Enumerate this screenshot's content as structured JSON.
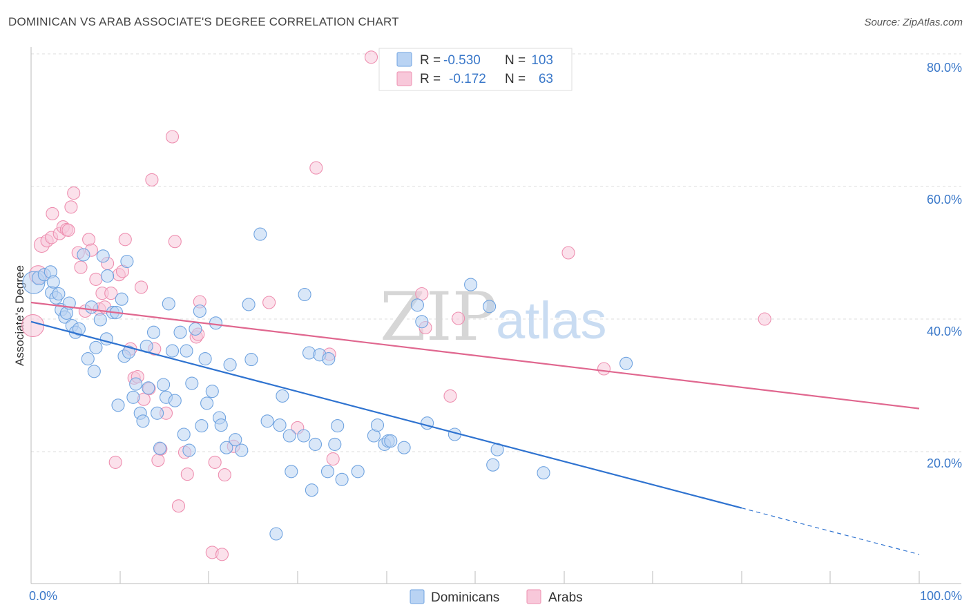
{
  "title": "DOMINICAN VS ARAB ASSOCIATE'S DEGREE CORRELATION CHART",
  "source": "Source: ZipAtlas.com",
  "watermark": {
    "part1": "ZIP",
    "part2": "atlas"
  },
  "colors": {
    "dominican": "#6fa3e0",
    "dominican_fill": "#b9d3f3",
    "dominican_line": "#2f73d0",
    "arab": "#ee8fb0",
    "arab_fill": "#f8c8da",
    "arab_line": "#e0678f",
    "grid": "#dddddd",
    "tick_text": "#3a78c9"
  },
  "legend": {
    "rows": [
      {
        "r_label": "R =",
        "r_value": "-0.530",
        "n_label": "N =",
        "n_value": "103"
      },
      {
        "r_label": "R =",
        "r_value": "-0.172",
        "n_label": "N =",
        "n_value": "63"
      }
    ]
  },
  "bottom_legend": {
    "dominicans": "Dominicans",
    "arabs": "Arabs"
  },
  "chart_data": {
    "type": "scatter",
    "title": "DOMINICAN VS ARAB ASSOCIATE'S DEGREE CORRELATION CHART",
    "xlabel": "",
    "ylabel": "Associate's Degree",
    "xlim": [
      0,
      100
    ],
    "ylim": [
      0,
      83
    ],
    "x_tick_labels": [
      "0.0%",
      "100.0%"
    ],
    "y_ticks": [
      20,
      40,
      60,
      80
    ],
    "y_tick_labels": [
      "20.0%",
      "40.0%",
      "60.0%",
      "80.0%"
    ],
    "series": [
      {
        "name": "Dominicans",
        "r": -0.53,
        "n": 103,
        "trend": {
          "x0": 0,
          "y0": 39.6,
          "x1": 80,
          "y1": 11.5,
          "dashed_to_x": 100,
          "dashed_to_y": 4.5
        },
        "points": [
          {
            "x": 0.3,
            "y": 45.5,
            "s": 16
          },
          {
            "x": 0.9,
            "y": 46.2,
            "s": 10
          },
          {
            "x": 1.5,
            "y": 46.7,
            "s": 9
          },
          {
            "x": 2.2,
            "y": 47.1,
            "s": 9
          },
          {
            "x": 2.3,
            "y": 44.0,
            "s": 9
          },
          {
            "x": 2.5,
            "y": 45.6,
            "s": 9
          },
          {
            "x": 2.8,
            "y": 43.2,
            "s": 9
          },
          {
            "x": 3.1,
            "y": 43.8,
            "s": 9
          },
          {
            "x": 3.4,
            "y": 41.4,
            "s": 9
          },
          {
            "x": 3.8,
            "y": 40.3,
            "s": 9
          },
          {
            "x": 4.0,
            "y": 40.9,
            "s": 9
          },
          {
            "x": 4.3,
            "y": 42.4,
            "s": 9
          },
          {
            "x": 4.6,
            "y": 39.0,
            "s": 9
          },
          {
            "x": 5.0,
            "y": 38.0,
            "s": 9
          },
          {
            "x": 5.4,
            "y": 38.5,
            "s": 9
          },
          {
            "x": 5.9,
            "y": 49.7,
            "s": 9
          },
          {
            "x": 6.4,
            "y": 34.0,
            "s": 9
          },
          {
            "x": 6.8,
            "y": 41.8,
            "s": 9
          },
          {
            "x": 7.1,
            "y": 32.1,
            "s": 9
          },
          {
            "x": 7.3,
            "y": 35.7,
            "s": 9
          },
          {
            "x": 7.8,
            "y": 39.9,
            "s": 9
          },
          {
            "x": 8.1,
            "y": 49.5,
            "s": 9
          },
          {
            "x": 8.5,
            "y": 37.0,
            "s": 9
          },
          {
            "x": 8.6,
            "y": 46.5,
            "s": 9
          },
          {
            "x": 9.2,
            "y": 41.0,
            "s": 9
          },
          {
            "x": 9.6,
            "y": 41.0,
            "s": 9
          },
          {
            "x": 9.8,
            "y": 27.0,
            "s": 9
          },
          {
            "x": 10.2,
            "y": 43.0,
            "s": 9
          },
          {
            "x": 10.5,
            "y": 34.4,
            "s": 9
          },
          {
            "x": 10.8,
            "y": 48.7,
            "s": 9
          },
          {
            "x": 11.0,
            "y": 35.0,
            "s": 9
          },
          {
            "x": 11.5,
            "y": 28.2,
            "s": 9
          },
          {
            "x": 11.8,
            "y": 30.2,
            "s": 9
          },
          {
            "x": 12.3,
            "y": 25.8,
            "s": 9
          },
          {
            "x": 12.6,
            "y": 24.6,
            "s": 9
          },
          {
            "x": 13.0,
            "y": 35.9,
            "s": 9
          },
          {
            "x": 13.2,
            "y": 29.6,
            "s": 9
          },
          {
            "x": 13.8,
            "y": 38.0,
            "s": 9
          },
          {
            "x": 14.2,
            "y": 25.8,
            "s": 9
          },
          {
            "x": 14.5,
            "y": 20.5,
            "s": 9
          },
          {
            "x": 14.9,
            "y": 30.1,
            "s": 9
          },
          {
            "x": 15.2,
            "y": 28.2,
            "s": 9
          },
          {
            "x": 15.5,
            "y": 42.3,
            "s": 9
          },
          {
            "x": 15.9,
            "y": 35.2,
            "s": 9
          },
          {
            "x": 16.2,
            "y": 27.7,
            "s": 9
          },
          {
            "x": 16.8,
            "y": 38.0,
            "s": 9
          },
          {
            "x": 17.2,
            "y": 22.6,
            "s": 9
          },
          {
            "x": 17.5,
            "y": 35.2,
            "s": 9
          },
          {
            "x": 17.8,
            "y": 20.2,
            "s": 9
          },
          {
            "x": 18.1,
            "y": 30.3,
            "s": 9
          },
          {
            "x": 18.5,
            "y": 38.5,
            "s": 9
          },
          {
            "x": 19.0,
            "y": 41.2,
            "s": 9
          },
          {
            "x": 19.2,
            "y": 23.9,
            "s": 9
          },
          {
            "x": 19.6,
            "y": 34.0,
            "s": 9
          },
          {
            "x": 19.8,
            "y": 27.3,
            "s": 9
          },
          {
            "x": 20.4,
            "y": 29.1,
            "s": 9
          },
          {
            "x": 20.8,
            "y": 39.4,
            "s": 9
          },
          {
            "x": 21.2,
            "y": 25.1,
            "s": 9
          },
          {
            "x": 21.4,
            "y": 24.0,
            "s": 9
          },
          {
            "x": 22.0,
            "y": 20.6,
            "s": 9
          },
          {
            "x": 22.4,
            "y": 33.1,
            "s": 9
          },
          {
            "x": 23.0,
            "y": 21.8,
            "s": 9
          },
          {
            "x": 23.7,
            "y": 20.2,
            "s": 9
          },
          {
            "x": 24.5,
            "y": 42.2,
            "s": 9
          },
          {
            "x": 24.8,
            "y": 33.9,
            "s": 9
          },
          {
            "x": 25.8,
            "y": 52.8,
            "s": 9
          },
          {
            "x": 26.6,
            "y": 24.6,
            "s": 9
          },
          {
            "x": 27.6,
            "y": 7.6,
            "s": 9
          },
          {
            "x": 28.0,
            "y": 24.0,
            "s": 9
          },
          {
            "x": 28.3,
            "y": 28.4,
            "s": 9
          },
          {
            "x": 29.1,
            "y": 22.4,
            "s": 9
          },
          {
            "x": 29.3,
            "y": 17.0,
            "s": 9
          },
          {
            "x": 30.8,
            "y": 43.7,
            "s": 9
          },
          {
            "x": 30.7,
            "y": 22.4,
            "s": 9
          },
          {
            "x": 31.3,
            "y": 34.9,
            "s": 9
          },
          {
            "x": 31.6,
            "y": 14.2,
            "s": 9
          },
          {
            "x": 32.0,
            "y": 21.1,
            "s": 9
          },
          {
            "x": 32.5,
            "y": 34.6,
            "s": 9
          },
          {
            "x": 33.5,
            "y": 34.0,
            "s": 9
          },
          {
            "x": 33.4,
            "y": 17.0,
            "s": 9
          },
          {
            "x": 34.2,
            "y": 21.1,
            "s": 9
          },
          {
            "x": 34.5,
            "y": 23.9,
            "s": 9
          },
          {
            "x": 35.0,
            "y": 15.8,
            "s": 9
          },
          {
            "x": 36.8,
            "y": 17.0,
            "s": 9
          },
          {
            "x": 38.6,
            "y": 22.4,
            "s": 9
          },
          {
            "x": 39.0,
            "y": 24.0,
            "s": 9
          },
          {
            "x": 39.8,
            "y": 21.1,
            "s": 9
          },
          {
            "x": 40.2,
            "y": 21.6,
            "s": 9
          },
          {
            "x": 40.5,
            "y": 21.6,
            "s": 9
          },
          {
            "x": 42.0,
            "y": 20.6,
            "s": 9
          },
          {
            "x": 43.5,
            "y": 42.1,
            "s": 9
          },
          {
            "x": 44.0,
            "y": 39.6,
            "s": 9
          },
          {
            "x": 44.6,
            "y": 24.3,
            "s": 9
          },
          {
            "x": 47.7,
            "y": 22.6,
            "s": 9
          },
          {
            "x": 49.5,
            "y": 45.2,
            "s": 9
          },
          {
            "x": 51.6,
            "y": 41.9,
            "s": 9
          },
          {
            "x": 52.0,
            "y": 18.0,
            "s": 9
          },
          {
            "x": 52.5,
            "y": 20.3,
            "s": 9
          },
          {
            "x": 57.7,
            "y": 16.8,
            "s": 9
          },
          {
            "x": 67.0,
            "y": 33.3,
            "s": 9
          }
        ]
      },
      {
        "name": "Arabs",
        "r": -0.172,
        "n": 63,
        "trend": {
          "x0": 0,
          "y0": 42.5,
          "x1": 100,
          "y1": 26.5
        },
        "points": [
          {
            "x": 0.2,
            "y": 39.0,
            "s": 16
          },
          {
            "x": 0.8,
            "y": 46.7,
            "s": 13
          },
          {
            "x": 1.2,
            "y": 51.2,
            "s": 11
          },
          {
            "x": 1.8,
            "y": 51.8,
            "s": 9
          },
          {
            "x": 2.3,
            "y": 52.3,
            "s": 9
          },
          {
            "x": 2.4,
            "y": 55.9,
            "s": 9
          },
          {
            "x": 3.2,
            "y": 52.9,
            "s": 9
          },
          {
            "x": 3.6,
            "y": 53.9,
            "s": 9
          },
          {
            "x": 4.0,
            "y": 53.5,
            "s": 9
          },
          {
            "x": 4.2,
            "y": 53.4,
            "s": 9
          },
          {
            "x": 4.5,
            "y": 56.9,
            "s": 9
          },
          {
            "x": 4.8,
            "y": 59.0,
            "s": 9
          },
          {
            "x": 5.3,
            "y": 50.0,
            "s": 9
          },
          {
            "x": 5.6,
            "y": 47.8,
            "s": 9
          },
          {
            "x": 6.1,
            "y": 41.2,
            "s": 9
          },
          {
            "x": 6.5,
            "y": 52.0,
            "s": 9
          },
          {
            "x": 6.8,
            "y": 50.4,
            "s": 9
          },
          {
            "x": 7.3,
            "y": 46.0,
            "s": 9
          },
          {
            "x": 7.7,
            "y": 41.5,
            "s": 9
          },
          {
            "x": 8.0,
            "y": 43.9,
            "s": 9
          },
          {
            "x": 8.3,
            "y": 41.8,
            "s": 9
          },
          {
            "x": 8.6,
            "y": 48.4,
            "s": 9
          },
          {
            "x": 9.0,
            "y": 43.9,
            "s": 9
          },
          {
            "x": 9.5,
            "y": 18.4,
            "s": 9
          },
          {
            "x": 9.9,
            "y": 46.7,
            "s": 9
          },
          {
            "x": 10.3,
            "y": 47.2,
            "s": 9
          },
          {
            "x": 10.6,
            "y": 52.0,
            "s": 9
          },
          {
            "x": 11.2,
            "y": 35.5,
            "s": 9
          },
          {
            "x": 11.6,
            "y": 31.1,
            "s": 9
          },
          {
            "x": 12.0,
            "y": 31.3,
            "s": 9
          },
          {
            "x": 12.4,
            "y": 44.8,
            "s": 9
          },
          {
            "x": 12.7,
            "y": 27.9,
            "s": 9
          },
          {
            "x": 13.3,
            "y": 29.5,
            "s": 9
          },
          {
            "x": 13.6,
            "y": 61.0,
            "s": 9
          },
          {
            "x": 13.9,
            "y": 35.5,
            "s": 9
          },
          {
            "x": 14.3,
            "y": 18.7,
            "s": 9
          },
          {
            "x": 14.6,
            "y": 20.4,
            "s": 9
          },
          {
            "x": 15.2,
            "y": 25.8,
            "s": 9
          },
          {
            "x": 15.9,
            "y": 67.5,
            "s": 9
          },
          {
            "x": 16.2,
            "y": 51.7,
            "s": 9
          },
          {
            "x": 16.6,
            "y": 11.8,
            "s": 9
          },
          {
            "x": 17.3,
            "y": 19.9,
            "s": 9
          },
          {
            "x": 17.6,
            "y": 16.6,
            "s": 9
          },
          {
            "x": 18.6,
            "y": 37.3,
            "s": 9
          },
          {
            "x": 18.8,
            "y": 37.7,
            "s": 9
          },
          {
            "x": 19.0,
            "y": 42.6,
            "s": 9
          },
          {
            "x": 20.4,
            "y": 4.8,
            "s": 9
          },
          {
            "x": 20.7,
            "y": 18.4,
            "s": 9
          },
          {
            "x": 21.5,
            "y": 4.5,
            "s": 9
          },
          {
            "x": 21.8,
            "y": 16.5,
            "s": 9
          },
          {
            "x": 22.8,
            "y": 20.8,
            "s": 9
          },
          {
            "x": 26.8,
            "y": 42.5,
            "s": 9
          },
          {
            "x": 30.0,
            "y": 23.6,
            "s": 9
          },
          {
            "x": 32.1,
            "y": 62.8,
            "s": 9
          },
          {
            "x": 33.6,
            "y": 34.7,
            "s": 9
          },
          {
            "x": 34.0,
            "y": 18.9,
            "s": 9
          },
          {
            "x": 38.3,
            "y": 79.5,
            "s": 9
          },
          {
            "x": 44.0,
            "y": 43.8,
            "s": 9
          },
          {
            "x": 44.4,
            "y": 38.7,
            "s": 9
          },
          {
            "x": 47.2,
            "y": 28.4,
            "s": 9
          },
          {
            "x": 48.1,
            "y": 40.1,
            "s": 9
          },
          {
            "x": 60.5,
            "y": 50.0,
            "s": 9
          },
          {
            "x": 64.5,
            "y": 32.5,
            "s": 9
          },
          {
            "x": 82.6,
            "y": 40.0,
            "s": 9
          }
        ]
      }
    ]
  }
}
